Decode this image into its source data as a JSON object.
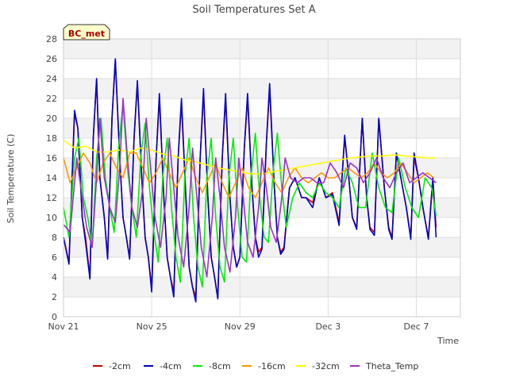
{
  "chart_data": {
    "type": "line",
    "title": "Soil Temperatures Set A",
    "xlabel": "Time",
    "ylabel": "Soil Temperature (C)",
    "annotation": "BC_met",
    "xlim": [
      0,
      18
    ],
    "ylim": [
      0,
      28
    ],
    "grid": true,
    "legend_position": "bottom",
    "x_ticks": [
      {
        "x": 0,
        "label": "Nov 21"
      },
      {
        "x": 4,
        "label": "Nov 25"
      },
      {
        "x": 8,
        "label": "Nov 29"
      },
      {
        "x": 12,
        "label": "Dec 3"
      },
      {
        "x": 16,
        "label": "Dec 7"
      }
    ],
    "y_ticks": [
      0,
      2,
      4,
      6,
      8,
      10,
      12,
      14,
      16,
      18,
      20,
      22,
      24,
      26,
      28
    ],
    "series": [
      {
        "name": "-2cm",
        "color": "#cc0000",
        "x": [
          0.0,
          0.25,
          0.5,
          0.65,
          0.85,
          1.0,
          1.2,
          1.35,
          1.5,
          1.65,
          1.85,
          2.0,
          2.2,
          2.35,
          2.55,
          2.7,
          2.85,
          3.0,
          3.2,
          3.35,
          3.55,
          3.7,
          3.85,
          4.0,
          4.2,
          4.35,
          4.55,
          4.7,
          4.85,
          5.0,
          5.2,
          5.35,
          5.55,
          5.7,
          5.85,
          6.0,
          6.2,
          6.35,
          6.55,
          6.7,
          6.85,
          7.0,
          7.2,
          7.35,
          7.55,
          7.7,
          7.85,
          8.0,
          8.2,
          8.35,
          8.55,
          8.7,
          8.85,
          9.0,
          9.2,
          9.35,
          9.55,
          9.7,
          9.85,
          10.0,
          10.25,
          10.5,
          10.8,
          11.0,
          11.3,
          11.6,
          11.9,
          12.2,
          12.5,
          12.75,
          12.9,
          13.1,
          13.3,
          13.55,
          13.75,
          13.9,
          14.1,
          14.3,
          14.55,
          14.75,
          14.9,
          15.1,
          15.3,
          15.55,
          15.75,
          15.9,
          16.1,
          16.3,
          16.55,
          16.75,
          16.9
        ],
        "y": [
          8.0,
          5.5,
          20.5,
          19.0,
          10.0,
          8.0,
          4.0,
          18.0,
          24.0,
          14.0,
          10.0,
          6.0,
          20.0,
          25.8,
          16.0,
          10.0,
          8.0,
          6.0,
          18.0,
          23.5,
          14.0,
          8.0,
          6.0,
          3.0,
          16.0,
          22.0,
          12.0,
          6.0,
          4.0,
          2.5,
          16.0,
          21.5,
          12.0,
          5.0,
          3.0,
          2.0,
          16.0,
          22.5,
          12.0,
          6.0,
          4.0,
          2.0,
          16.0,
          22.0,
          12.0,
          7.0,
          5.0,
          6.0,
          17.0,
          22.0,
          13.0,
          8.0,
          6.5,
          7.0,
          17.5,
          23.0,
          13.5,
          8.0,
          6.5,
          7.0,
          13.0,
          14.0,
          12.0,
          12.0,
          11.5,
          14.0,
          12.0,
          12.5,
          9.5,
          18.0,
          15.0,
          10.0,
          9.0,
          20.0,
          12.0,
          9.0,
          8.5,
          20.0,
          13.0,
          9.0,
          8.0,
          16.5,
          14.0,
          11.0,
          8.0,
          16.0,
          14.0,
          11.0,
          8.0,
          14.0,
          9.0
        ]
      },
      {
        "name": "-4cm",
        "color": "#0000cc",
        "x": [
          0.0,
          0.25,
          0.5,
          0.65,
          0.85,
          1.0,
          1.2,
          1.35,
          1.5,
          1.65,
          1.85,
          2.0,
          2.2,
          2.35,
          2.55,
          2.7,
          2.85,
          3.0,
          3.2,
          3.35,
          3.55,
          3.7,
          3.85,
          4.0,
          4.2,
          4.35,
          4.55,
          4.7,
          4.85,
          5.0,
          5.2,
          5.35,
          5.55,
          5.7,
          5.85,
          6.0,
          6.2,
          6.35,
          6.55,
          6.7,
          6.85,
          7.0,
          7.2,
          7.35,
          7.55,
          7.7,
          7.85,
          8.0,
          8.2,
          8.35,
          8.55,
          8.7,
          8.85,
          9.0,
          9.2,
          9.35,
          9.55,
          9.7,
          9.85,
          10.0,
          10.25,
          10.5,
          10.8,
          11.0,
          11.3,
          11.6,
          11.9,
          12.2,
          12.5,
          12.75,
          12.9,
          13.1,
          13.3,
          13.55,
          13.75,
          13.9,
          14.1,
          14.3,
          14.55,
          14.75,
          14.9,
          15.1,
          15.3,
          15.55,
          15.75,
          15.9,
          16.1,
          16.3,
          16.55,
          16.75,
          16.9
        ],
        "y": [
          8.0,
          5.3,
          20.8,
          19.0,
          10.0,
          7.5,
          3.8,
          18.0,
          24.0,
          14.0,
          10.0,
          5.8,
          20.0,
          26.0,
          16.0,
          10.0,
          8.0,
          5.8,
          18.0,
          23.8,
          14.0,
          8.0,
          6.0,
          2.5,
          16.0,
          22.5,
          12.0,
          6.0,
          4.0,
          2.0,
          16.0,
          22.0,
          12.0,
          5.0,
          3.0,
          1.5,
          16.0,
          23.0,
          12.0,
          6.0,
          4.0,
          1.8,
          16.0,
          22.5,
          12.0,
          7.0,
          5.0,
          6.0,
          17.0,
          22.5,
          13.0,
          8.0,
          6.0,
          6.8,
          17.5,
          23.5,
          13.5,
          8.0,
          6.3,
          6.8,
          13.0,
          14.0,
          12.0,
          12.0,
          11.0,
          14.0,
          12.0,
          12.3,
          9.2,
          18.3,
          15.0,
          10.0,
          8.8,
          20.0,
          12.0,
          8.8,
          8.2,
          20.0,
          13.0,
          8.8,
          7.8,
          16.5,
          14.0,
          11.0,
          7.8,
          16.5,
          14.0,
          11.0,
          7.8,
          14.0,
          8.0
        ]
      },
      {
        "name": "-8cm",
        "color": "#00ee00",
        "x": [
          0.0,
          0.25,
          0.5,
          0.7,
          0.9,
          1.1,
          1.3,
          1.5,
          1.7,
          1.9,
          2.1,
          2.3,
          2.5,
          2.7,
          2.9,
          3.1,
          3.3,
          3.5,
          3.7,
          3.9,
          4.1,
          4.3,
          4.5,
          4.7,
          4.9,
          5.1,
          5.3,
          5.5,
          5.7,
          5.9,
          6.1,
          6.3,
          6.5,
          6.7,
          6.9,
          7.1,
          7.3,
          7.5,
          7.7,
          7.9,
          8.1,
          8.3,
          8.5,
          8.7,
          8.9,
          9.1,
          9.3,
          9.5,
          9.7,
          9.9,
          10.1,
          10.4,
          10.7,
          11.0,
          11.3,
          11.6,
          11.9,
          12.2,
          12.5,
          12.8,
          13.1,
          13.4,
          13.7,
          14.0,
          14.3,
          14.6,
          14.9,
          15.2,
          15.5,
          15.8,
          16.1,
          16.4,
          16.7,
          16.9
        ],
        "y": [
          11.0,
          8.0,
          16.0,
          18.0,
          12.0,
          10.0,
          7.0,
          16.0,
          20.0,
          14.0,
          11.0,
          8.5,
          17.0,
          21.5,
          15.0,
          11.0,
          8.0,
          16.0,
          19.5,
          13.0,
          8.5,
          5.5,
          14.0,
          18.0,
          11.0,
          6.0,
          3.5,
          14.0,
          18.0,
          10.0,
          5.0,
          3.0,
          14.0,
          18.0,
          10.0,
          5.0,
          3.5,
          14.0,
          18.0,
          11.0,
          6.0,
          5.5,
          14.0,
          18.5,
          12.0,
          8.0,
          7.5,
          14.5,
          18.5,
          13.0,
          9.0,
          12.0,
          13.5,
          12.5,
          12.0,
          13.5,
          12.5,
          12.0,
          11.0,
          15.0,
          13.5,
          11.0,
          11.0,
          16.5,
          13.0,
          11.0,
          10.5,
          16.0,
          13.0,
          11.0,
          10.0,
          14.0,
          13.0,
          10.2
        ]
      },
      {
        "name": "-16cm",
        "color": "#ff9900",
        "x": [
          0.0,
          0.3,
          0.6,
          0.9,
          1.2,
          1.5,
          1.8,
          2.1,
          2.4,
          2.7,
          3.0,
          3.3,
          3.6,
          3.9,
          4.2,
          4.5,
          4.8,
          5.1,
          5.4,
          5.7,
          6.0,
          6.3,
          6.6,
          6.9,
          7.2,
          7.5,
          7.8,
          8.1,
          8.4,
          8.7,
          9.0,
          9.3,
          9.6,
          9.9,
          10.2,
          10.5,
          10.8,
          11.1,
          11.4,
          11.7,
          12.0,
          12.3,
          12.6,
          12.9,
          13.2,
          13.5,
          13.8,
          14.1,
          14.4,
          14.7,
          15.0,
          15.3,
          15.6,
          15.9,
          16.2,
          16.5,
          16.8
        ],
        "y": [
          16.0,
          13.5,
          15.0,
          16.5,
          15.5,
          13.5,
          15.5,
          16.5,
          15.0,
          14.0,
          16.5,
          16.5,
          15.0,
          13.5,
          14.5,
          16.0,
          14.5,
          13.0,
          14.5,
          16.0,
          14.0,
          12.5,
          14.0,
          15.5,
          13.5,
          12.0,
          13.5,
          15.0,
          13.0,
          12.0,
          13.5,
          15.0,
          13.5,
          12.5,
          14.0,
          15.0,
          14.0,
          13.5,
          14.0,
          14.5,
          14.0,
          14.0,
          14.5,
          15.0,
          14.5,
          14.0,
          14.5,
          15.5,
          14.5,
          14.0,
          14.5,
          15.5,
          14.5,
          13.5,
          14.0,
          14.5,
          14.0
        ]
      },
      {
        "name": "-32cm",
        "color": "#ffff00",
        "x": [
          0.0,
          0.5,
          1.0,
          1.5,
          2.0,
          2.5,
          3.0,
          3.5,
          4.0,
          4.5,
          5.0,
          5.5,
          6.0,
          6.5,
          7.0,
          7.5,
          8.0,
          8.5,
          9.0,
          9.5,
          10.0,
          10.5,
          11.0,
          11.5,
          12.0,
          12.5,
          13.0,
          13.5,
          14.0,
          14.5,
          15.0,
          15.5,
          16.0,
          16.5,
          16.9
        ],
        "y": [
          17.8,
          17.0,
          17.2,
          16.6,
          16.6,
          16.8,
          16.6,
          17.0,
          16.8,
          16.4,
          16.2,
          15.8,
          15.6,
          15.3,
          15.0,
          14.8,
          14.6,
          14.4,
          14.4,
          14.6,
          14.8,
          15.0,
          15.2,
          15.4,
          15.6,
          15.8,
          16.0,
          16.1,
          16.2,
          16.2,
          16.3,
          16.2,
          16.1,
          16.0,
          16.0
        ]
      },
      {
        "name": "Theta_Temp",
        "color": "#9933cc",
        "x": [
          0.0,
          0.3,
          0.6,
          0.85,
          1.05,
          1.3,
          1.5,
          1.65,
          1.85,
          2.1,
          2.35,
          2.55,
          2.7,
          2.9,
          3.1,
          3.35,
          3.6,
          3.75,
          3.95,
          4.15,
          4.4,
          4.65,
          4.8,
          5.0,
          5.2,
          5.45,
          5.7,
          5.85,
          6.05,
          6.25,
          6.5,
          6.75,
          6.9,
          7.1,
          7.3,
          7.55,
          7.8,
          7.95,
          8.15,
          8.35,
          8.6,
          8.85,
          9.0,
          9.2,
          9.4,
          9.65,
          9.9,
          10.05,
          10.3,
          10.6,
          10.9,
          11.2,
          11.5,
          11.8,
          12.1,
          12.4,
          12.7,
          13.0,
          13.3,
          13.6,
          13.9,
          14.2,
          14.5,
          14.8,
          15.1,
          15.4,
          15.7,
          16.0,
          16.3,
          16.6,
          16.9
        ],
        "y": [
          9.3,
          8.5,
          16.0,
          12.0,
          9.0,
          7.0,
          14.0,
          20.0,
          14.0,
          11.0,
          9.5,
          15.0,
          22.0,
          16.0,
          11.0,
          9.0,
          13.0,
          20.0,
          15.0,
          10.0,
          7.0,
          12.0,
          18.0,
          13.0,
          8.0,
          5.0,
          11.0,
          17.0,
          12.0,
          7.0,
          4.0,
          10.0,
          16.0,
          12.0,
          7.0,
          4.5,
          10.0,
          16.0,
          12.0,
          7.5,
          6.0,
          11.0,
          16.0,
          13.0,
          9.0,
          7.5,
          12.0,
          16.0,
          14.0,
          13.5,
          14.0,
          14.0,
          13.5,
          13.5,
          15.5,
          14.5,
          13.0,
          15.5,
          15.0,
          13.5,
          14.5,
          16.0,
          14.0,
          13.0,
          14.5,
          15.5,
          13.5,
          14.0,
          14.5,
          14.0,
          13.5
        ]
      }
    ]
  }
}
